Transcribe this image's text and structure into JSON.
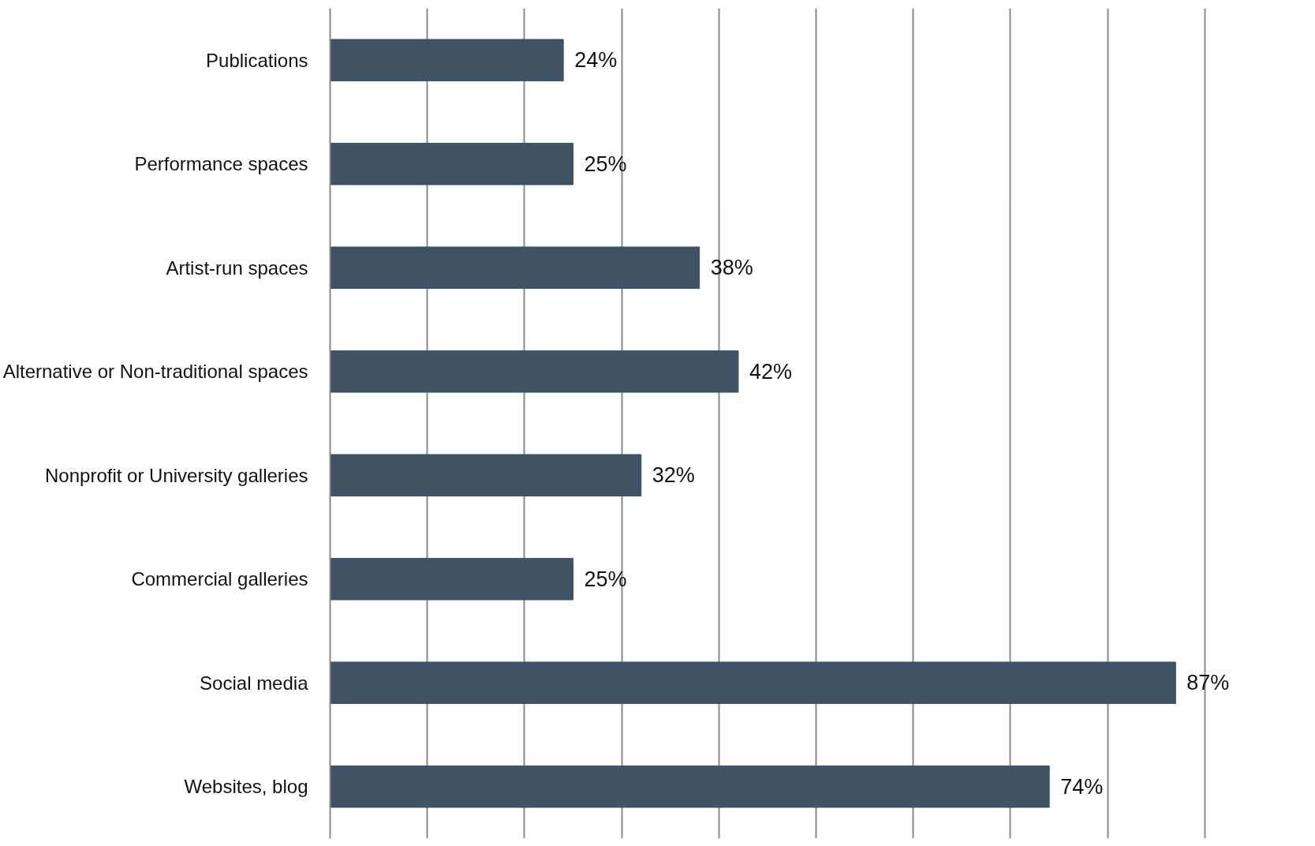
{
  "chart_data": {
    "type": "bar",
    "orientation": "horizontal",
    "categories": [
      "Publications",
      "Performance spaces",
      "Artist-run spaces",
      "Alternative or Non-traditional spaces",
      "Nonprofit or University galleries",
      "Commercial galleries",
      "Social media",
      "Websites, blog"
    ],
    "values": [
      24,
      25,
      38,
      42,
      32,
      25,
      87,
      74
    ],
    "value_labels": [
      "24%",
      "25%",
      "38%",
      "42%",
      "32%",
      "25%",
      "87%",
      "74%"
    ],
    "color": "#3f5364",
    "xticks": [
      {
        "value": 0,
        "label": null
      },
      {
        "value": 10,
        "label": null
      },
      {
        "value": 20,
        "label": null
      },
      {
        "value": 30,
        "label": null
      },
      {
        "value": 40,
        "label": null
      },
      {
        "value": 50,
        "label": null
      },
      {
        "value": 60,
        "label": null
      },
      {
        "value": 70,
        "label": null
      },
      {
        "value": 80,
        "label": null
      },
      {
        "value": 90,
        "label": null
      }
    ],
    "grid": "x",
    "tick_labels": "y"
  }
}
